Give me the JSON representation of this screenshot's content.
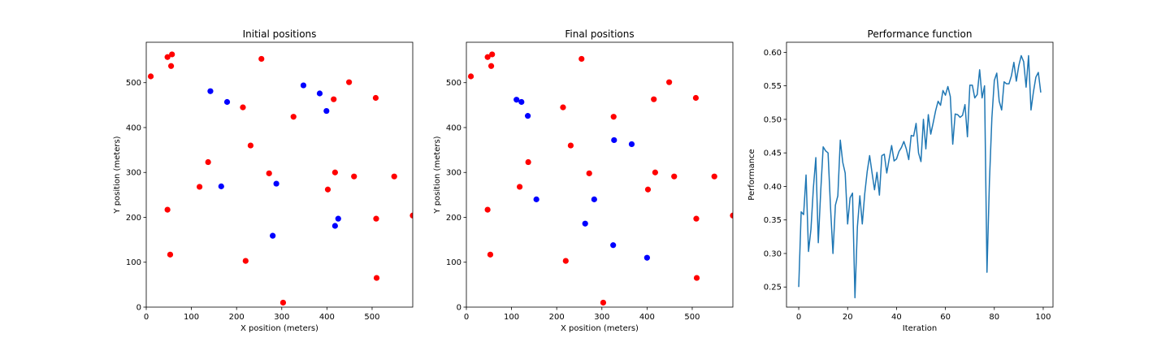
{
  "chart_data": [
    {
      "type": "scatter",
      "title": "Initial positions",
      "xlabel": "X position (meters)",
      "ylabel": "Y position (meters)",
      "xlim": [
        0,
        590
      ],
      "ylim": [
        0,
        590
      ],
      "xticks": [
        0,
        100,
        200,
        300,
        400,
        500
      ],
      "yticks": [
        0,
        100,
        200,
        300,
        400,
        500
      ],
      "series": [
        {
          "color": "#ff0000",
          "points": [
            [
              10,
              514
            ],
            [
              47,
              557
            ],
            [
              57,
              563
            ],
            [
              55,
              537
            ],
            [
              255,
              553
            ],
            [
              449,
              501
            ],
            [
              508,
              466
            ],
            [
              415,
              463
            ],
            [
              214,
              445
            ],
            [
              326,
              424
            ],
            [
              231,
              360
            ],
            [
              137,
              323
            ],
            [
              418,
              300
            ],
            [
              460,
              291
            ],
            [
              549,
              291
            ],
            [
              272,
              298
            ],
            [
              118,
              268
            ],
            [
              402,
              262
            ],
            [
              47,
              217
            ],
            [
              509,
              197
            ],
            [
              590,
              204
            ],
            [
              53,
              117
            ],
            [
              220,
              103
            ],
            [
              510,
              65
            ],
            [
              303,
              10
            ]
          ]
        },
        {
          "color": "#0000ff",
          "points": [
            [
              142,
              481
            ],
            [
              179,
              457
            ],
            [
              348,
              494
            ],
            [
              384,
              476
            ],
            [
              399,
              437
            ],
            [
              166,
              269
            ],
            [
              288,
              275
            ],
            [
              425,
              197
            ],
            [
              418,
              181
            ],
            [
              280,
              159
            ]
          ]
        }
      ]
    },
    {
      "type": "scatter",
      "title": "Final positions",
      "xlabel": "X position (meters)",
      "ylabel": "Y position (meters)",
      "xlim": [
        0,
        590
      ],
      "ylim": [
        0,
        590
      ],
      "xticks": [
        0,
        100,
        200,
        300,
        400,
        500
      ],
      "yticks": [
        0,
        100,
        200,
        300,
        400,
        500
      ],
      "series": [
        {
          "color": "#ff0000",
          "points": [
            [
              10,
              514
            ],
            [
              47,
              557
            ],
            [
              57,
              563
            ],
            [
              55,
              537
            ],
            [
              255,
              553
            ],
            [
              449,
              501
            ],
            [
              508,
              466
            ],
            [
              415,
              463
            ],
            [
              214,
              445
            ],
            [
              326,
              424
            ],
            [
              231,
              360
            ],
            [
              137,
              323
            ],
            [
              418,
              300
            ],
            [
              460,
              291
            ],
            [
              549,
              291
            ],
            [
              272,
              298
            ],
            [
              118,
              268
            ],
            [
              402,
              262
            ],
            [
              47,
              217
            ],
            [
              509,
              197
            ],
            [
              590,
              204
            ],
            [
              53,
              117
            ],
            [
              220,
              103
            ],
            [
              510,
              65
            ],
            [
              303,
              10
            ]
          ]
        },
        {
          "color": "#0000ff",
          "points": [
            [
              111,
              462
            ],
            [
              122,
              457
            ],
            [
              136,
              426
            ],
            [
              327,
              372
            ],
            [
              366,
              363
            ],
            [
              155,
              240
            ],
            [
              283,
              240
            ],
            [
              263,
              186
            ],
            [
              325,
              138
            ],
            [
              400,
              110
            ]
          ]
        }
      ]
    },
    {
      "type": "line",
      "title": "Performance function",
      "xlabel": "Iteration",
      "ylabel": "Performance",
      "xlim": [
        -5,
        104
      ],
      "ylim": [
        0.22,
        0.615
      ],
      "xticks": [
        0,
        20,
        40,
        60,
        80,
        100
      ],
      "yticks": [
        0.25,
        0.3,
        0.35,
        0.4,
        0.45,
        0.5,
        0.55,
        0.6
      ],
      "series": [
        {
          "color": "#1f77b4",
          "x": [
            0,
            1,
            2,
            3,
            4,
            5,
            6,
            7,
            8,
            9,
            10,
            11,
            12,
            13,
            14,
            15,
            16,
            17,
            18,
            19,
            20,
            21,
            22,
            23,
            24,
            25,
            26,
            27,
            28,
            29,
            30,
            31,
            32,
            33,
            34,
            35,
            36,
            37,
            38,
            39,
            40,
            41,
            42,
            43,
            44,
            45,
            46,
            47,
            48,
            49,
            50,
            51,
            52,
            53,
            54,
            55,
            56,
            57,
            58,
            59,
            60,
            61,
            62,
            63,
            64,
            65,
            66,
            67,
            68,
            69,
            70,
            71,
            72,
            73,
            74,
            75,
            76,
            77,
            78,
            79,
            80,
            81,
            82,
            83,
            84,
            85,
            86,
            87,
            88,
            89,
            90,
            91,
            92,
            93,
            94,
            95,
            96,
            97,
            98,
            99
          ],
          "y": [
            0.25,
            0.362,
            0.358,
            0.417,
            0.303,
            0.336,
            0.398,
            0.443,
            0.316,
            0.393,
            0.459,
            0.453,
            0.45,
            0.369,
            0.3,
            0.372,
            0.386,
            0.469,
            0.436,
            0.42,
            0.344,
            0.383,
            0.39,
            0.234,
            0.34,
            0.386,
            0.344,
            0.389,
            0.422,
            0.446,
            0.42,
            0.395,
            0.421,
            0.387,
            0.446,
            0.448,
            0.42,
            0.441,
            0.461,
            0.438,
            0.441,
            0.452,
            0.458,
            0.467,
            0.456,
            0.44,
            0.476,
            0.475,
            0.494,
            0.45,
            0.437,
            0.5,
            0.456,
            0.507,
            0.478,
            0.495,
            0.513,
            0.527,
            0.521,
            0.543,
            0.536,
            0.549,
            0.534,
            0.463,
            0.508,
            0.507,
            0.503,
            0.506,
            0.522,
            0.474,
            0.551,
            0.551,
            0.532,
            0.537,
            0.574,
            0.532,
            0.55,
            0.272,
            0.407,
            0.502,
            0.558,
            0.569,
            0.527,
            0.514,
            0.556,
            0.553,
            0.553,
            0.565,
            0.585,
            0.557,
            0.58,
            0.595,
            0.586,
            0.548,
            0.595,
            0.514,
            0.541,
            0.563,
            0.57,
            0.54
          ]
        }
      ]
    }
  ]
}
